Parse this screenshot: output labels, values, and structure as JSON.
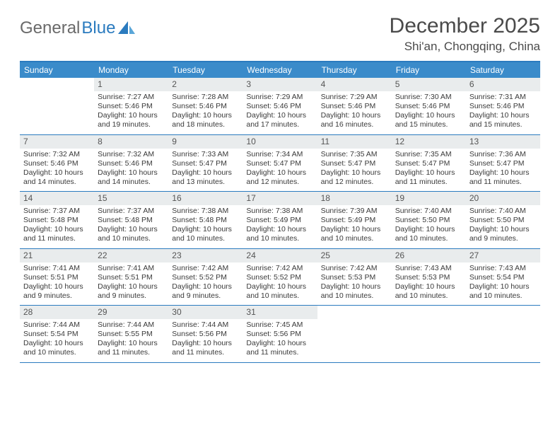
{
  "brand": {
    "part1": "General",
    "part2": "Blue"
  },
  "title": "December 2025",
  "location": "Shi'an, Chongqing, China",
  "colors": {
    "header_bg": "#3a8bca",
    "header_text": "#ffffff",
    "rule": "#2b7bbf",
    "daynum_bg": "#e9eced",
    "body_text": "#3a3a3a"
  },
  "daysOfWeek": [
    "Sunday",
    "Monday",
    "Tuesday",
    "Wednesday",
    "Thursday",
    "Friday",
    "Saturday"
  ],
  "weeks": [
    [
      null,
      {
        "n": "1",
        "sr": "7:27 AM",
        "ss": "5:46 PM",
        "dl": "10 hours and 19 minutes."
      },
      {
        "n": "2",
        "sr": "7:28 AM",
        "ss": "5:46 PM",
        "dl": "10 hours and 18 minutes."
      },
      {
        "n": "3",
        "sr": "7:29 AM",
        "ss": "5:46 PM",
        "dl": "10 hours and 17 minutes."
      },
      {
        "n": "4",
        "sr": "7:29 AM",
        "ss": "5:46 PM",
        "dl": "10 hours and 16 minutes."
      },
      {
        "n": "5",
        "sr": "7:30 AM",
        "ss": "5:46 PM",
        "dl": "10 hours and 15 minutes."
      },
      {
        "n": "6",
        "sr": "7:31 AM",
        "ss": "5:46 PM",
        "dl": "10 hours and 15 minutes."
      }
    ],
    [
      {
        "n": "7",
        "sr": "7:32 AM",
        "ss": "5:46 PM",
        "dl": "10 hours and 14 minutes."
      },
      {
        "n": "8",
        "sr": "7:32 AM",
        "ss": "5:46 PM",
        "dl": "10 hours and 14 minutes."
      },
      {
        "n": "9",
        "sr": "7:33 AM",
        "ss": "5:47 PM",
        "dl": "10 hours and 13 minutes."
      },
      {
        "n": "10",
        "sr": "7:34 AM",
        "ss": "5:47 PM",
        "dl": "10 hours and 12 minutes."
      },
      {
        "n": "11",
        "sr": "7:35 AM",
        "ss": "5:47 PM",
        "dl": "10 hours and 12 minutes."
      },
      {
        "n": "12",
        "sr": "7:35 AM",
        "ss": "5:47 PM",
        "dl": "10 hours and 11 minutes."
      },
      {
        "n": "13",
        "sr": "7:36 AM",
        "ss": "5:47 PM",
        "dl": "10 hours and 11 minutes."
      }
    ],
    [
      {
        "n": "14",
        "sr": "7:37 AM",
        "ss": "5:48 PM",
        "dl": "10 hours and 11 minutes."
      },
      {
        "n": "15",
        "sr": "7:37 AM",
        "ss": "5:48 PM",
        "dl": "10 hours and 10 minutes."
      },
      {
        "n": "16",
        "sr": "7:38 AM",
        "ss": "5:48 PM",
        "dl": "10 hours and 10 minutes."
      },
      {
        "n": "17",
        "sr": "7:38 AM",
        "ss": "5:49 PM",
        "dl": "10 hours and 10 minutes."
      },
      {
        "n": "18",
        "sr": "7:39 AM",
        "ss": "5:49 PM",
        "dl": "10 hours and 10 minutes."
      },
      {
        "n": "19",
        "sr": "7:40 AM",
        "ss": "5:50 PM",
        "dl": "10 hours and 10 minutes."
      },
      {
        "n": "20",
        "sr": "7:40 AM",
        "ss": "5:50 PM",
        "dl": "10 hours and 9 minutes."
      }
    ],
    [
      {
        "n": "21",
        "sr": "7:41 AM",
        "ss": "5:51 PM",
        "dl": "10 hours and 9 minutes."
      },
      {
        "n": "22",
        "sr": "7:41 AM",
        "ss": "5:51 PM",
        "dl": "10 hours and 9 minutes."
      },
      {
        "n": "23",
        "sr": "7:42 AM",
        "ss": "5:52 PM",
        "dl": "10 hours and 9 minutes."
      },
      {
        "n": "24",
        "sr": "7:42 AM",
        "ss": "5:52 PM",
        "dl": "10 hours and 10 minutes."
      },
      {
        "n": "25",
        "sr": "7:42 AM",
        "ss": "5:53 PM",
        "dl": "10 hours and 10 minutes."
      },
      {
        "n": "26",
        "sr": "7:43 AM",
        "ss": "5:53 PM",
        "dl": "10 hours and 10 minutes."
      },
      {
        "n": "27",
        "sr": "7:43 AM",
        "ss": "5:54 PM",
        "dl": "10 hours and 10 minutes."
      }
    ],
    [
      {
        "n": "28",
        "sr": "7:44 AM",
        "ss": "5:54 PM",
        "dl": "10 hours and 10 minutes."
      },
      {
        "n": "29",
        "sr": "7:44 AM",
        "ss": "5:55 PM",
        "dl": "10 hours and 11 minutes."
      },
      {
        "n": "30",
        "sr": "7:44 AM",
        "ss": "5:56 PM",
        "dl": "10 hours and 11 minutes."
      },
      {
        "n": "31",
        "sr": "7:45 AM",
        "ss": "5:56 PM",
        "dl": "10 hours and 11 minutes."
      },
      null,
      null,
      null
    ]
  ],
  "labels": {
    "sunrise": "Sunrise:",
    "sunset": "Sunset:",
    "daylight": "Daylight:"
  }
}
